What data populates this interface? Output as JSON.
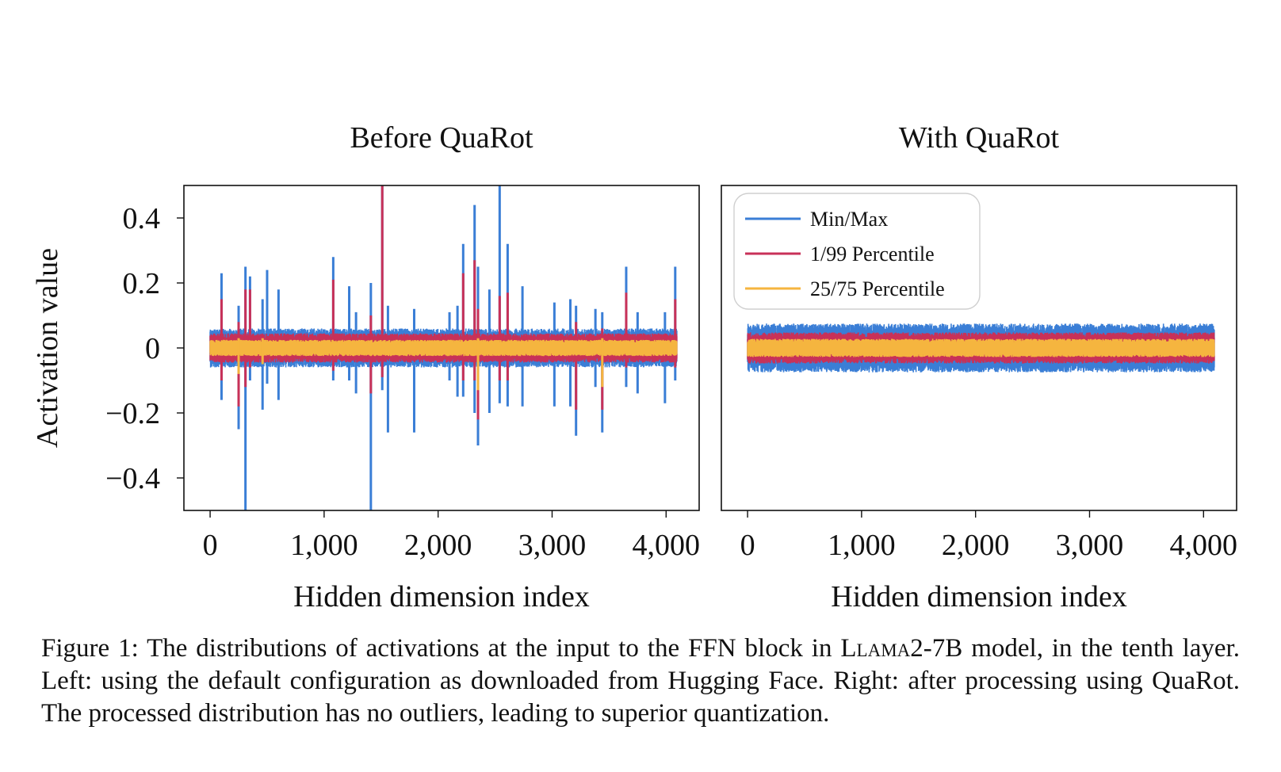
{
  "chart_data": [
    {
      "type": "line",
      "title": "Before QuaRot",
      "xlabel": "Hidden dimension index",
      "ylabel": "Activation value",
      "xlim": [
        -230,
        4290
      ],
      "ylim": [
        -0.5,
        0.5
      ],
      "x_ticks": [
        0,
        1000,
        2000,
        3000,
        4000
      ],
      "x_tick_labels": [
        "0",
        "1,000",
        "2,000",
        "3,000",
        "4,000"
      ],
      "y_ticks": [
        -0.4,
        -0.2,
        0,
        0.2,
        0.4
      ],
      "y_tick_labels": [
        "−0.4",
        "−0.2",
        "0",
        "0.2",
        "0.4"
      ],
      "grid": false,
      "legend": null,
      "n_points": 4096,
      "series": [
        {
          "name": "Min/Max",
          "color": "#3a7ed6",
          "band": {
            "low": -0.06,
            "high": 0.06
          },
          "spikes": [
            {
              "x": 100,
              "high": 0.23,
              "low": -0.16
            },
            {
              "x": 250,
              "high": 0.13,
              "low": -0.25
            },
            {
              "x": 310,
              "high": 0.25,
              "low": -0.5
            },
            {
              "x": 350,
              "high": 0.22,
              "low": -0.1
            },
            {
              "x": 460,
              "high": 0.15,
              "low": -0.19
            },
            {
              "x": 500,
              "high": 0.24,
              "low": -0.11
            },
            {
              "x": 600,
              "high": 0.18,
              "low": -0.16
            },
            {
              "x": 1080,
              "high": 0.28,
              "low": -0.1
            },
            {
              "x": 1220,
              "high": 0.19,
              "low": -0.1
            },
            {
              "x": 1280,
              "high": 0.11,
              "low": -0.14
            },
            {
              "x": 1410,
              "high": 0.2,
              "low": -0.5
            },
            {
              "x": 1510,
              "high": 0.5,
              "low": -0.13
            },
            {
              "x": 1560,
              "high": 0.13,
              "low": -0.26
            },
            {
              "x": 1790,
              "high": 0.12,
              "low": -0.26
            },
            {
              "x": 2100,
              "high": 0.11,
              "low": -0.1
            },
            {
              "x": 2170,
              "high": 0.13,
              "low": -0.15
            },
            {
              "x": 2220,
              "high": 0.32,
              "low": -0.15
            },
            {
              "x": 2320,
              "high": 0.44,
              "low": -0.2
            },
            {
              "x": 2350,
              "high": 0.25,
              "low": -0.3
            },
            {
              "x": 2450,
              "high": 0.18,
              "low": -0.2
            },
            {
              "x": 2540,
              "high": 0.5,
              "low": -0.17
            },
            {
              "x": 2610,
              "high": 0.32,
              "low": -0.18
            },
            {
              "x": 2740,
              "high": 0.19,
              "low": -0.18
            },
            {
              "x": 3020,
              "high": 0.14,
              "low": -0.18
            },
            {
              "x": 3160,
              "high": 0.15,
              "low": -0.18
            },
            {
              "x": 3210,
              "high": 0.13,
              "low": -0.27
            },
            {
              "x": 3380,
              "high": 0.12,
              "low": -0.12
            },
            {
              "x": 3440,
              "high": 0.11,
              "low": -0.26
            },
            {
              "x": 3650,
              "high": 0.25,
              "low": -0.12
            },
            {
              "x": 3750,
              "high": 0.11,
              "low": -0.14
            },
            {
              "x": 3990,
              "high": 0.11,
              "low": -0.17
            },
            {
              "x": 4080,
              "high": 0.25,
              "low": -0.1
            }
          ]
        },
        {
          "name": "1/99 Percentile",
          "color": "#c83158",
          "band": {
            "low": -0.045,
            "high": 0.045
          },
          "spikes": [
            {
              "x": 100,
              "high": 0.15,
              "low": -0.1
            },
            {
              "x": 250,
              "high": 0.08,
              "low": -0.18
            },
            {
              "x": 310,
              "high": 0.18,
              "low": -0.12
            },
            {
              "x": 350,
              "high": 0.18,
              "low": -0.06
            },
            {
              "x": 1080,
              "high": 0.21,
              "low": -0.07
            },
            {
              "x": 1410,
              "high": 0.1,
              "low": -0.14
            },
            {
              "x": 1510,
              "high": 0.5,
              "low": -0.09
            },
            {
              "x": 2220,
              "high": 0.23,
              "low": -0.1
            },
            {
              "x": 2320,
              "high": 0.27,
              "low": -0.1
            },
            {
              "x": 2350,
              "high": 0.12,
              "low": -0.22
            },
            {
              "x": 2540,
              "high": 0.16,
              "low": -0.1
            },
            {
              "x": 2610,
              "high": 0.17,
              "low": -0.1
            },
            {
              "x": 3210,
              "high": 0.08,
              "low": -0.19
            },
            {
              "x": 3440,
              "high": 0.06,
              "low": -0.19
            },
            {
              "x": 3650,
              "high": 0.17,
              "low": -0.06
            },
            {
              "x": 4080,
              "high": 0.15,
              "low": -0.06
            }
          ]
        },
        {
          "name": "25/75 Percentile",
          "color": "#f5b53f",
          "band": {
            "low": -0.025,
            "high": 0.025
          },
          "spikes": [
            {
              "x": 250,
              "high": 0.03,
              "low": -0.08
            },
            {
              "x": 460,
              "high": 0.03,
              "low": -0.05
            },
            {
              "x": 2350,
              "high": 0.03,
              "low": -0.13
            },
            {
              "x": 3440,
              "high": 0.03,
              "low": -0.12
            }
          ]
        }
      ]
    },
    {
      "type": "line",
      "title": "With QuaRot",
      "xlabel": "Hidden dimension index",
      "ylabel": "",
      "xlim": [
        -230,
        4290
      ],
      "ylim": [
        -0.5,
        0.5
      ],
      "x_ticks": [
        0,
        1000,
        2000,
        3000,
        4000
      ],
      "x_tick_labels": [
        "0",
        "1,000",
        "2,000",
        "3,000",
        "4,000"
      ],
      "y_ticks": [],
      "grid": false,
      "legend": "top-left",
      "n_points": 4096,
      "series": [
        {
          "name": "Min/Max",
          "color": "#3a7ed6",
          "band": {
            "low": -0.075,
            "high": 0.075
          },
          "spikes": []
        },
        {
          "name": "1/99 Percentile",
          "color": "#c83158",
          "band": {
            "low": -0.048,
            "high": 0.048
          },
          "spikes": []
        },
        {
          "name": "25/75 Percentile",
          "color": "#f5b53f",
          "band": {
            "low": -0.028,
            "high": 0.028
          },
          "spikes": []
        }
      ]
    }
  ],
  "caption": {
    "prefix": "Figure 1:  The distributions of activations at the input to the FFN block in ",
    "model_name": "Llama2-7B",
    "suffix": " model, in the tenth layer. Left: using the default configuration as downloaded from Hugging Face. Right: after processing using QuaRot. The processed distribution has no outliers, leading to superior quantization."
  }
}
